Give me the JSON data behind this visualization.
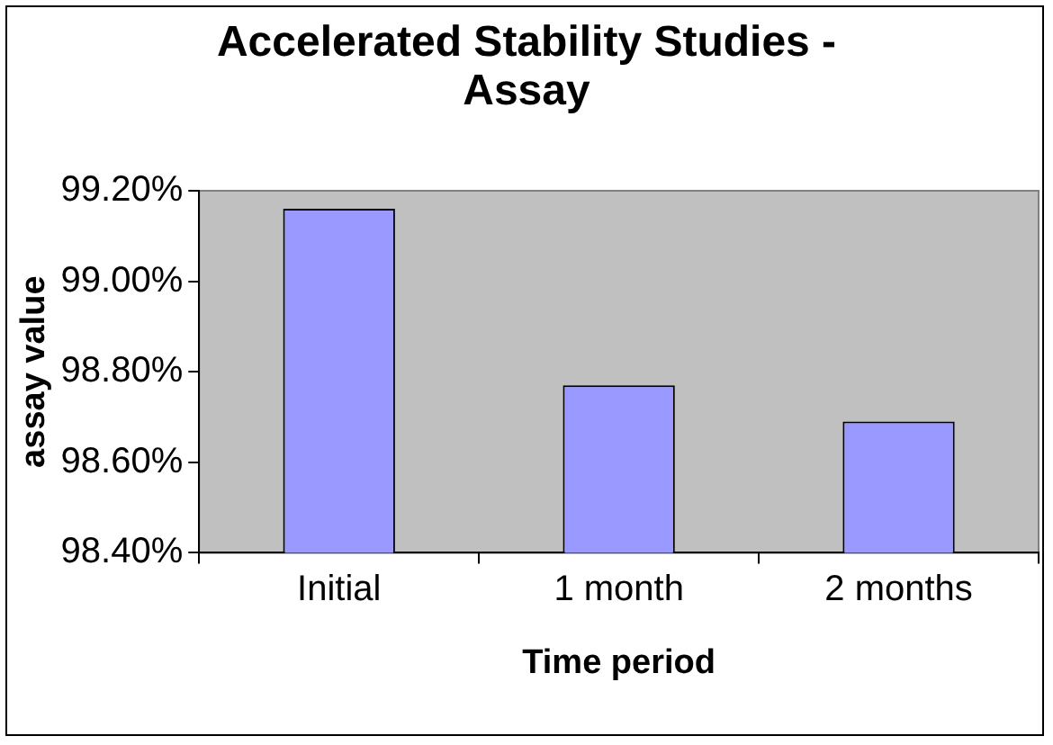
{
  "chart_data": {
    "type": "bar",
    "title": "Accelerated Stability Studies - Assay",
    "xlabel": "Time period",
    "ylabel": "assay value",
    "categories": [
      "Initial",
      "1 month",
      "2 months"
    ],
    "values": [
      99.16,
      98.77,
      98.69
    ],
    "color": "#9999ff",
    "ylim": [
      98.4,
      99.2
    ],
    "yticks": [
      {
        "value": 98.4,
        "label": "98.40%"
      },
      {
        "value": 98.6,
        "label": "98.60%"
      },
      {
        "value": 98.8,
        "label": "98.80%"
      },
      {
        "value": 99.0,
        "label": "99.00%"
      },
      {
        "value": 99.2,
        "label": "99.20%"
      }
    ],
    "grid": false,
    "legend": false
  }
}
